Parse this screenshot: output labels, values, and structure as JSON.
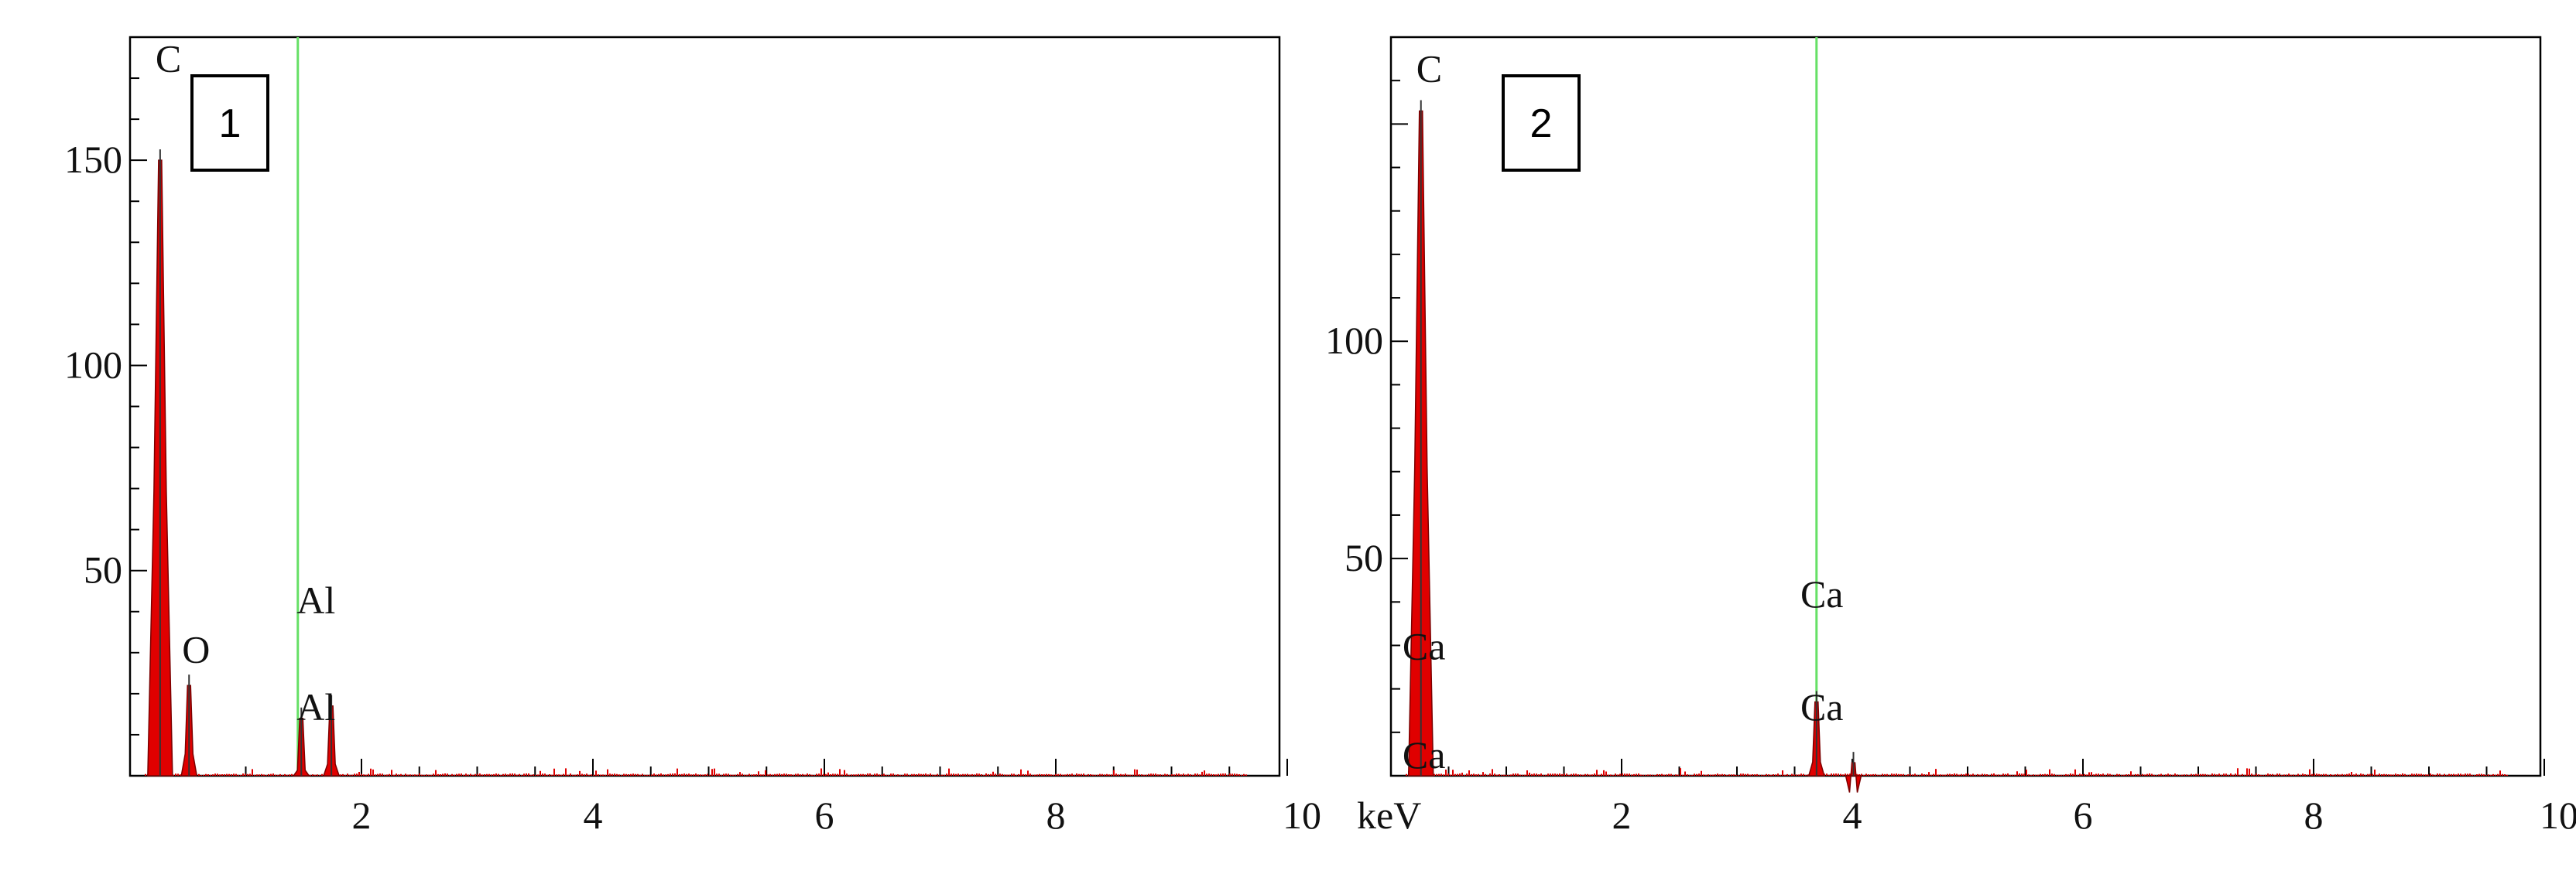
{
  "chart_data": [
    {
      "type": "line",
      "panel_label": "1",
      "xunit": "keV",
      "xlim": [
        0,
        10
      ],
      "ylim": [
        0,
        180
      ],
      "x_ticks": [
        2,
        4,
        6,
        8,
        10
      ],
      "x_tick_labels": [
        "2",
        "4",
        "6",
        "8",
        "10"
      ],
      "y_ticks": [
        50,
        100,
        150
      ],
      "y_tick_labels": [
        "50",
        "100",
        "150"
      ],
      "marker_line": {
        "x": 1.45,
        "color": "#66e066"
      },
      "peaks": [
        {
          "label": "C",
          "x": 0.26,
          "y": 150
        },
        {
          "label": "O",
          "x": 0.51,
          "y": 22
        },
        {
          "label": "Al",
          "x": 1.48,
          "y": 14
        },
        {
          "label": "Al",
          "x": 1.74,
          "y": 17
        }
      ],
      "annotations": [
        {
          "text": "C",
          "x": 0.22,
          "y": 175
        },
        {
          "text": "O",
          "x": 0.45,
          "y": 31
        },
        {
          "text": "Al",
          "x": 1.44,
          "y": 43
        },
        {
          "text": "Al",
          "x": 1.44,
          "y": 17
        }
      ],
      "spectrum_color": "#e00000"
    },
    {
      "type": "line",
      "panel_label": "2",
      "xunit": "keV",
      "xlim": [
        0,
        10
      ],
      "ylim": [
        0,
        170
      ],
      "x_ticks": [
        2,
        4,
        6,
        8,
        10
      ],
      "x_tick_labels": [
        "2",
        "4",
        "6",
        "8",
        "10"
      ],
      "y_ticks": [
        50,
        100
      ],
      "y_tick_labels": [
        "50",
        "100"
      ],
      "marker_line": {
        "x": 3.69,
        "color": "#66e066"
      },
      "peaks": [
        {
          "label": "C",
          "x": 0.26,
          "y": 153
        },
        {
          "label": "Ca",
          "x": 3.69,
          "y": 17
        },
        {
          "label": "Ca",
          "x": 4.01,
          "y": 3
        }
      ],
      "annotations": [
        {
          "text": "C",
          "x": 0.22,
          "y": 163
        },
        {
          "text": "Ca",
          "x": 0.1,
          "y": 30
        },
        {
          "text": "Ca",
          "x": 0.1,
          "y": 5
        },
        {
          "text": "Ca",
          "x": 3.55,
          "y": 42
        },
        {
          "text": "Ca",
          "x": 3.55,
          "y": 16
        }
      ],
      "spectrum_color": "#e00000"
    }
  ]
}
